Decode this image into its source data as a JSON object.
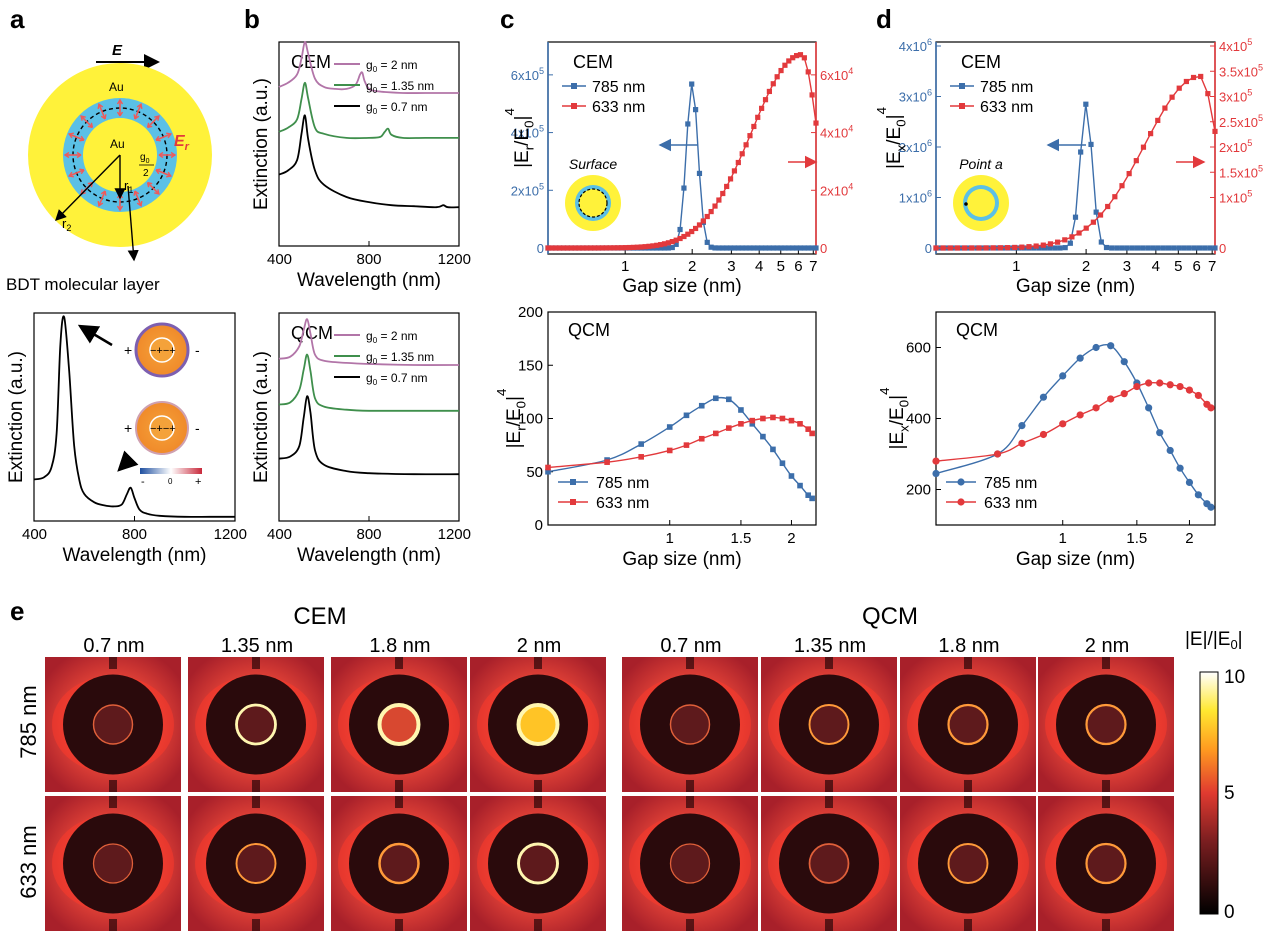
{
  "panel_letters": {
    "a": "a",
    "b": "b",
    "c": "c",
    "d": "d",
    "e": "e"
  },
  "colors": {
    "blue": "#3c6eaa",
    "red": "#e2393c",
    "purple": "#b275a8",
    "green": "#3f8f4c",
    "black": "#000000",
    "gold": "#fff23a",
    "cyan": "#5bc0e6",
    "orange": "#f3a12e",
    "arrow_red": "#ef5a5a"
  },
  "schematic": {
    "field_label": "E",
    "outer_label": "Au",
    "inner_label": "Au",
    "er_label": "E",
    "er_sub": "r",
    "gap_label": "g",
    "gap_sub": "0",
    "gap_den": "2",
    "r1_label": "r",
    "r1_sub": "1",
    "r2_label": "r",
    "r2_sub": "2",
    "molecular_layer_label": "BDT molecular layer"
  },
  "charge_labels": {
    "plus": "+",
    "minus": "-",
    "zero": "0",
    "scale_minus": "-",
    "scale_plus": "+"
  },
  "chart_data": [
    {
      "id": "a-bottom",
      "type": "line",
      "ylabel": "Extinction (a.u.)",
      "xlabel": "Wavelength (nm)",
      "xlim": [
        400,
        1200
      ],
      "x_ticks": [
        400,
        800,
        1200
      ],
      "series": [
        {
          "name": "spectrum",
          "x": [
            400,
            440,
            470,
            490,
            505,
            520,
            540,
            560,
            580,
            600,
            640,
            680,
            720,
            750,
            770,
            785,
            800,
            820,
            850,
            900,
            1000,
            1100,
            1200
          ],
          "values": [
            0.2,
            0.21,
            0.26,
            0.42,
            0.85,
            0.98,
            0.72,
            0.36,
            0.2,
            0.13,
            0.09,
            0.075,
            0.07,
            0.08,
            0.13,
            0.16,
            0.11,
            0.055,
            0.035,
            0.025,
            0.02,
            0.02,
            0.02
          ]
        }
      ]
    },
    {
      "id": "b-CEM",
      "type": "line",
      "title": "CEM",
      "ylabel": "Extinction (a.u.)",
      "xlabel": "Wavelength (nm)",
      "xlim": [
        400,
        1200
      ],
      "x_ticks": [
        400,
        800,
        1200
      ],
      "series": [
        {
          "name": "g0 = 2 nm",
          "legend_pre": "g",
          "legend_sub": "0",
          "legend_post": " = 2 nm",
          "color": "#b275a8",
          "x": [
            400,
            440,
            480,
            500,
            515,
            530,
            560,
            600,
            650,
            700,
            740,
            760,
            770,
            780,
            800,
            830,
            870,
            950,
            1050,
            1200
          ],
          "values": [
            0.78,
            0.8,
            0.84,
            0.92,
            1.0,
            0.94,
            0.82,
            0.78,
            0.77,
            0.77,
            0.79,
            0.84,
            0.85,
            0.81,
            0.77,
            0.76,
            0.755,
            0.75,
            0.75,
            0.75
          ]
        },
        {
          "name": "g0 = 1.35 nm",
          "legend_pre": "g",
          "legend_sub": "0",
          "legend_post": " = 1.35 nm",
          "color": "#3f8f4c",
          "x": [
            400,
            440,
            480,
            500,
            515,
            530,
            560,
            600,
            700,
            800,
            850,
            870,
            885,
            900,
            950,
            1050,
            1200
          ],
          "values": [
            0.56,
            0.58,
            0.62,
            0.72,
            0.8,
            0.72,
            0.58,
            0.55,
            0.53,
            0.53,
            0.535,
            0.56,
            0.575,
            0.545,
            0.53,
            0.53,
            0.53
          ]
        },
        {
          "name": "g0 = 0.7 nm",
          "legend_pre": "g",
          "legend_sub": "0",
          "legend_post": " = 0.7 nm",
          "color": "#000000",
          "x": [
            400,
            440,
            480,
            500,
            515,
            530,
            560,
            600,
            700,
            800,
            900,
            1000,
            1100,
            1130,
            1150,
            1200
          ],
          "values": [
            0.35,
            0.37,
            0.42,
            0.55,
            0.64,
            0.52,
            0.37,
            0.3,
            0.24,
            0.215,
            0.2,
            0.195,
            0.19,
            0.2,
            0.19,
            0.19
          ]
        }
      ]
    },
    {
      "id": "b-QCM",
      "type": "line",
      "title": "QCM",
      "ylabel": "Extinction (a.u.)",
      "xlabel": "Wavelength (nm)",
      "xlim": [
        400,
        1200
      ],
      "x_ticks": [
        400,
        800,
        1200
      ],
      "series": [
        {
          "name": "g0 = 2 nm",
          "legend_pre": "g",
          "legend_sub": "0",
          "legend_post": " = 2 nm",
          "color": "#b275a8",
          "x": [
            400,
            450,
            490,
            510,
            525,
            540,
            560,
            600,
            700,
            800,
            1000,
            1200
          ],
          "values": [
            0.78,
            0.79,
            0.84,
            0.92,
            0.97,
            0.9,
            0.8,
            0.77,
            0.76,
            0.755,
            0.75,
            0.75
          ]
        },
        {
          "name": "g0 = 1.35 nm",
          "legend_pre": "g",
          "legend_sub": "0",
          "legend_post": " = 1.35 nm",
          "color": "#3f8f4c",
          "x": [
            400,
            450,
            490,
            510,
            525,
            540,
            560,
            600,
            700,
            800,
            1000,
            1200
          ],
          "values": [
            0.56,
            0.57,
            0.63,
            0.73,
            0.8,
            0.72,
            0.59,
            0.55,
            0.535,
            0.53,
            0.53,
            0.53
          ]
        },
        {
          "name": "g0 = 0.7 nm",
          "legend_pre": "g",
          "legend_sub": "0",
          "legend_post": " = 0.7 nm",
          "color": "#000000",
          "x": [
            400,
            450,
            490,
            510,
            525,
            540,
            560,
            600,
            700,
            800,
            1000,
            1200
          ],
          "values": [
            0.3,
            0.31,
            0.36,
            0.5,
            0.6,
            0.52,
            0.34,
            0.27,
            0.24,
            0.23,
            0.225,
            0.225
          ]
        }
      ]
    },
    {
      "id": "c-CEM",
      "type": "line",
      "title": "CEM",
      "xlabel": "Gap size (nm)",
      "ylabel_parts": [
        "|E",
        "r",
        "/E",
        "0",
        "|",
        "4"
      ],
      "xscale": "log",
      "xlim": [
        0.45,
        7.2
      ],
      "x_ticks": [
        1,
        2,
        3,
        4,
        5,
        6,
        7
      ],
      "left_ylim": [
        0,
        700000
      ],
      "left_ticks": [
        {
          "v": 0,
          "m": "0"
        },
        {
          "v": 200000,
          "m": "2x10",
          "e": "5"
        },
        {
          "v": 400000,
          "m": "4x10",
          "e": "5"
        },
        {
          "v": 600000,
          "m": "6x10",
          "e": "5"
        }
      ],
      "right_ylim": [
        0,
        70000
      ],
      "right_ticks": [
        {
          "v": 0,
          "m": "0"
        },
        {
          "v": 20000,
          "m": "2x10",
          "e": "4"
        },
        {
          "v": 40000,
          "m": "4x10",
          "e": "4"
        },
        {
          "v": 60000,
          "m": "6x10",
          "e": "4"
        }
      ],
      "inset_label": "Surface",
      "series": [
        {
          "name": "785 nm",
          "axis": "left",
          "color": "#3c6eaa",
          "peak": 2.0,
          "peak_value": 570000,
          "width": 0.06,
          "n": 70
        },
        {
          "name": "633 nm",
          "axis": "right",
          "color": "#e2393c",
          "peak": 6.2,
          "peak_value": 67000,
          "width": 0.16,
          "n": 70
        }
      ]
    },
    {
      "id": "d-CEM",
      "type": "line",
      "title": "CEM",
      "xlabel": "Gap size (nm)",
      "ylabel_parts": [
        "|E",
        "x",
        "/E",
        "0",
        "|",
        "4"
      ],
      "xscale": "log",
      "xlim": [
        0.45,
        7.2
      ],
      "x_ticks": [
        1,
        2,
        3,
        4,
        5,
        6,
        7
      ],
      "left_ylim": [
        0,
        4000000
      ],
      "left_ticks": [
        {
          "v": 0,
          "m": "0"
        },
        {
          "v": 1000000,
          "m": "1x10",
          "e": "6"
        },
        {
          "v": 2000000,
          "m": "2x10",
          "e": "6"
        },
        {
          "v": 3000000,
          "m": "3x10",
          "e": "6"
        },
        {
          "v": 4000000,
          "m": "4x10",
          "e": "6"
        }
      ],
      "right_ylim": [
        0,
        400000
      ],
      "right_ticks": [
        {
          "v": 0,
          "m": "0"
        },
        {
          "v": 100000,
          "m": "1x10",
          "e": "5"
        },
        {
          "v": 150000,
          "m": "1.5x10",
          "e": "5"
        },
        {
          "v": 200000,
          "m": "2x10",
          "e": "5"
        },
        {
          "v": 250000,
          "m": "2.5x10",
          "e": "5"
        },
        {
          "v": 300000,
          "m": "3x10",
          "e": "5"
        },
        {
          "v": 350000,
          "m": "3.5x10",
          "e": "5"
        },
        {
          "v": 400000,
          "m": "4x10",
          "e": "5"
        }
      ],
      "inset_label": "Point a",
      "series": [
        {
          "name": "785 nm",
          "axis": "left",
          "color": "#3c6eaa",
          "peak": 2.0,
          "peak_value": 2850000,
          "width": 0.06,
          "n": 55
        },
        {
          "name": "633 nm",
          "axis": "right",
          "color": "#e2393c",
          "peak": 6.2,
          "peak_value": 340000,
          "width": 0.17,
          "n": 40
        }
      ]
    },
    {
      "id": "c-QCM",
      "type": "line",
      "title": "QCM",
      "xlabel": "Gap size (nm)",
      "ylabel_parts": [
        "|E",
        "r",
        "/E",
        "0",
        "|",
        "4"
      ],
      "xscale": "log",
      "xlim": [
        0.5,
        2.3
      ],
      "x_ticks": [
        1,
        1.5,
        2
      ],
      "ylim": [
        0,
        200
      ],
      "y_ticks": [
        0,
        50,
        100,
        150,
        200
      ],
      "series": [
        {
          "name": "785 nm",
          "color": "#3c6eaa",
          "marker": "square",
          "x": [
            0.5,
            0.7,
            0.85,
            1.0,
            1.1,
            1.2,
            1.3,
            1.4,
            1.5,
            1.6,
            1.7,
            1.8,
            1.9,
            2.0,
            2.1,
            2.2,
            2.25
          ],
          "values": [
            50,
            61,
            76,
            92,
            103,
            112,
            119,
            118,
            108,
            95,
            83,
            71,
            58,
            46,
            37,
            28,
            25
          ]
        },
        {
          "name": "633 nm",
          "color": "#e2393c",
          "marker": "square",
          "x": [
            0.5,
            0.7,
            0.85,
            1.0,
            1.1,
            1.2,
            1.3,
            1.4,
            1.5,
            1.6,
            1.7,
            1.8,
            1.9,
            2.0,
            2.1,
            2.2,
            2.25
          ],
          "values": [
            54,
            59,
            64,
            70,
            75,
            81,
            86,
            91,
            95,
            98,
            100,
            101,
            100,
            98,
            95,
            90,
            86
          ]
        }
      ]
    },
    {
      "id": "d-QCM",
      "type": "line",
      "title": "QCM",
      "xlabel": "Gap size (nm)",
      "ylabel_parts": [
        "|E",
        "x",
        "/E",
        "0",
        "|",
        "4"
      ],
      "xscale": "log",
      "xlim": [
        0.5,
        2.3
      ],
      "x_ticks": [
        1,
        1.5,
        2
      ],
      "ylim": [
        100,
        700
      ],
      "y_ticks": [
        200,
        400,
        600
      ],
      "series": [
        {
          "name": "785 nm",
          "color": "#3c6eaa",
          "marker": "circle",
          "x": [
            0.5,
            0.7,
            0.8,
            0.9,
            1.0,
            1.1,
            1.2,
            1.3,
            1.4,
            1.5,
            1.6,
            1.7,
            1.8,
            1.9,
            2.0,
            2.1,
            2.2,
            2.25
          ],
          "values": [
            245,
            300,
            380,
            460,
            520,
            570,
            600,
            605,
            560,
            500,
            430,
            360,
            310,
            260,
            220,
            185,
            160,
            150
          ]
        },
        {
          "name": "633 nm",
          "color": "#e2393c",
          "marker": "circle",
          "x": [
            0.5,
            0.7,
            0.8,
            0.9,
            1.0,
            1.1,
            1.2,
            1.3,
            1.4,
            1.5,
            1.6,
            1.7,
            1.8,
            1.9,
            2.0,
            2.1,
            2.2,
            2.25
          ],
          "values": [
            280,
            300,
            330,
            355,
            385,
            410,
            430,
            455,
            470,
            490,
            500,
            500,
            495,
            490,
            480,
            465,
            440,
            430
          ]
        }
      ]
    }
  ],
  "field_maps": {
    "groups": [
      {
        "title": "CEM"
      },
      {
        "title": "QCM"
      }
    ],
    "gaps": [
      "0.7 nm",
      "1.35 nm",
      "1.8 nm",
      "2 nm"
    ],
    "rows": [
      "785 nm",
      "633 nm"
    ],
    "colorbar": {
      "label_parts": [
        "|E|/|E",
        "0",
        "|"
      ],
      "ticks": [
        "10",
        "5",
        "0"
      ]
    },
    "intensity": [
      [
        0.15,
        0.6,
        1.0,
        1.0,
        0.15,
        0.3,
        0.4,
        0.4
      ],
      [
        0.1,
        0.3,
        0.5,
        0.65,
        0.1,
        0.25,
        0.3,
        0.4
      ]
    ]
  }
}
